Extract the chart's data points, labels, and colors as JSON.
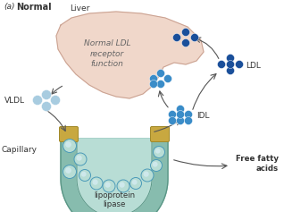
{
  "title_label": "(a)",
  "title_bold": "Normal",
  "liver_label": "Liver",
  "liver_text": "Normal LDL\nreceptor\nfunction",
  "vldl_label": "VLDL",
  "ldl_label": "LDL",
  "idl_label": "IDL",
  "capillary_label": "Capillary",
  "lipase_label": "lipoprotein\nlipase",
  "fatty_label": "Free fatty\nacids",
  "bg_color": "#ffffff",
  "liver_fill": "#f0d5c8",
  "liver_edge": "#c8a090",
  "capillary_outer_fill": "#7ab5a5",
  "capillary_outer_edge": "#5a9585",
  "capillary_lumen_fill": "#b8ddd5",
  "cap_endcap_fill": "#c8a840",
  "cap_endcap_edge": "#a08828",
  "dot_dark": "#1a4f9a",
  "dot_medium": "#3a8cc8",
  "dot_light": "#88c0d8",
  "dot_vldl": "#a8cce0",
  "arrow_color": "#555555",
  "text_color": "#333333",
  "lumen_circle_fill": "#b8ddd5",
  "lumen_circle_edge": "#4a9ab8"
}
